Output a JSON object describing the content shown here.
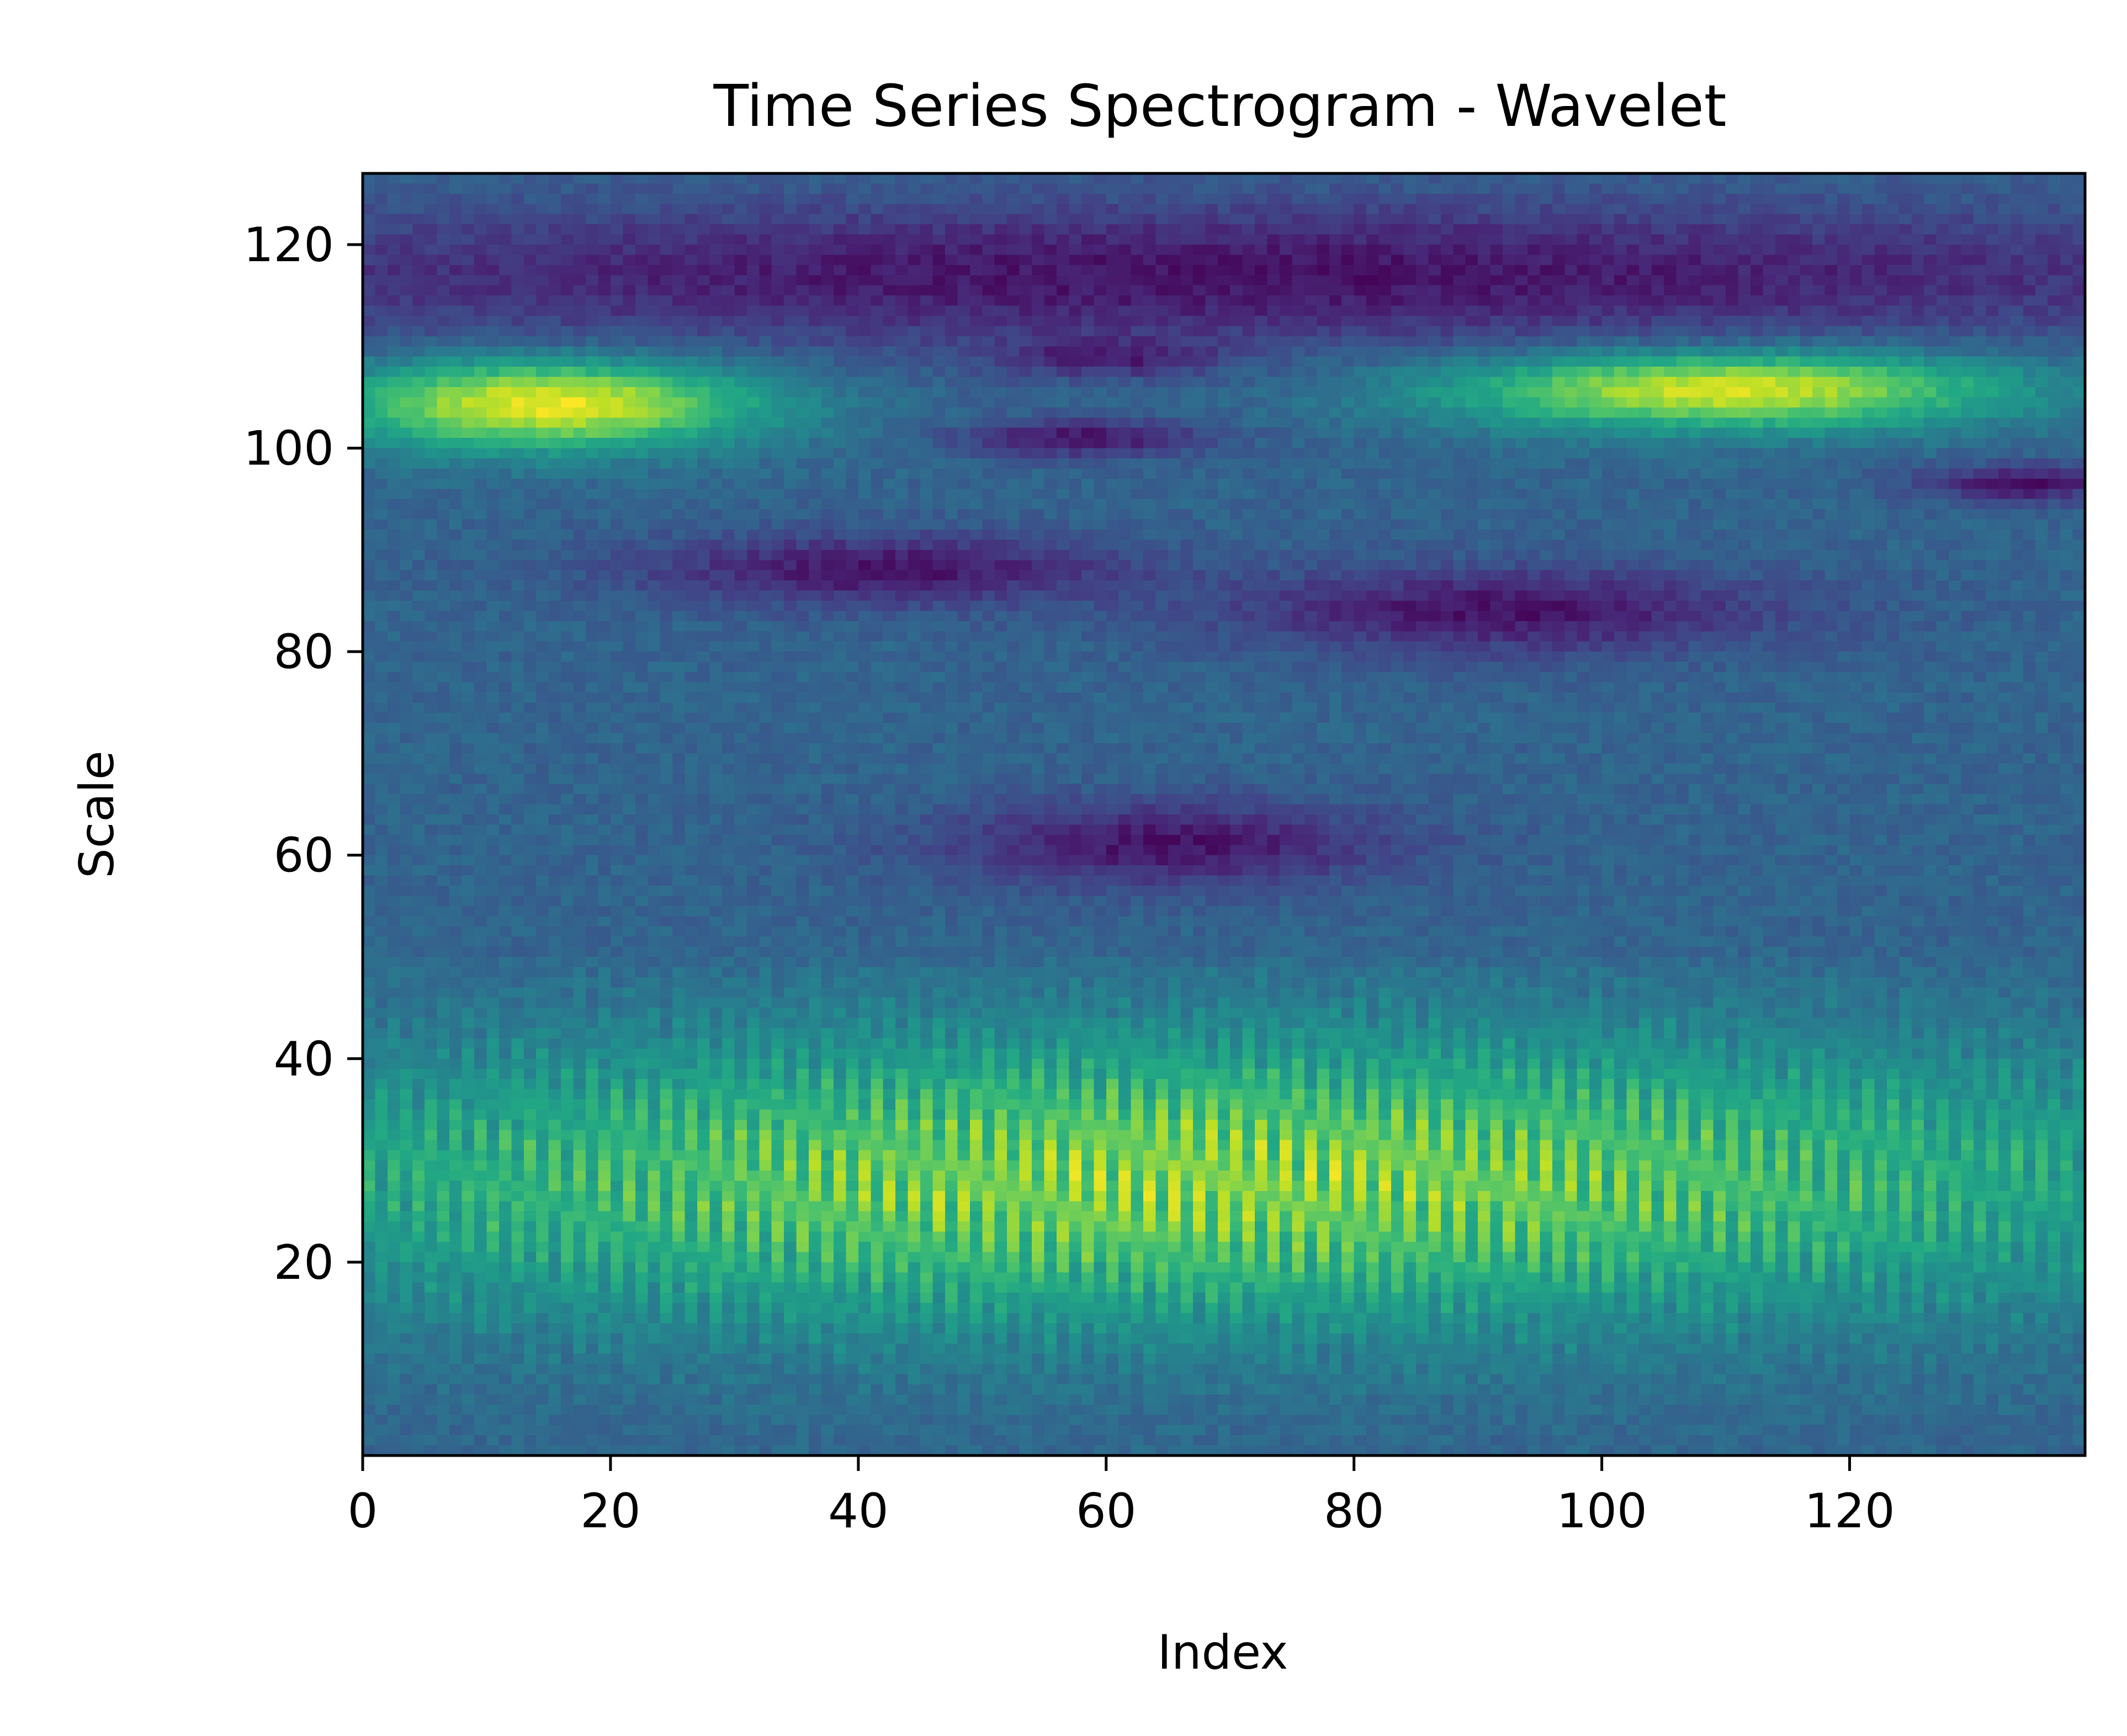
{
  "chart_data": {
    "type": "heatmap",
    "title": "Time Series Spectrogram - Wavelet",
    "xlabel": "Index",
    "ylabel": "Scale",
    "xlim": [
      0,
      139
    ],
    "ylim": [
      1,
      127
    ],
    "x_ticks": [
      0,
      20,
      40,
      60,
      80,
      100,
      120
    ],
    "y_ticks": [
      20,
      40,
      60,
      80,
      100,
      120
    ],
    "grid": false,
    "legend": "none",
    "colormap": "viridis",
    "value_range": [
      0,
      1
    ],
    "n_columns": 139,
    "n_rows": 126,
    "features": [
      {
        "description": "bright band",
        "x_center": 15,
        "y_center": 104.5,
        "x_sigma": 12,
        "y_sigma": 3.2,
        "value": 1.0
      },
      {
        "description": "bright band",
        "x_center": 110,
        "y_center": 106,
        "x_sigma": 16,
        "y_sigma": 2.8,
        "value": 1.0
      },
      {
        "description": "oscillating bright region",
        "x_center": 68,
        "y_center": 28,
        "x_sigma": 60,
        "y_sigma": 10,
        "value": 0.85
      },
      {
        "description": "dark patch",
        "x_center": 42,
        "y_center": 88,
        "x_sigma": 14,
        "y_sigma": 2.5,
        "value": 0.05
      },
      {
        "description": "dark patch",
        "x_center": 92,
        "y_center": 84,
        "x_sigma": 16,
        "y_sigma": 3.0,
        "value": 0.05
      },
      {
        "description": "dark patch",
        "x_center": 65,
        "y_center": 61,
        "x_sigma": 13,
        "y_sigma": 3.0,
        "value": 0.05
      },
      {
        "description": "dark patch",
        "x_center": 58,
        "y_center": 101,
        "x_sigma": 7,
        "y_sigma": 1.3,
        "value": 0.05
      },
      {
        "description": "dark patch",
        "x_center": 60,
        "y_center": 109,
        "x_sigma": 6,
        "y_sigma": 1.3,
        "value": 0.05
      },
      {
        "description": "dark band",
        "x_center": 70,
        "y_center": 117,
        "x_sigma": 70,
        "y_sigma": 5,
        "value": 0.05
      },
      {
        "description": "dark patch",
        "x_center": 134,
        "y_center": 96.5,
        "x_sigma": 6,
        "y_sigma": 1.3,
        "value": 0.05
      }
    ],
    "background_value": 0.32
  }
}
